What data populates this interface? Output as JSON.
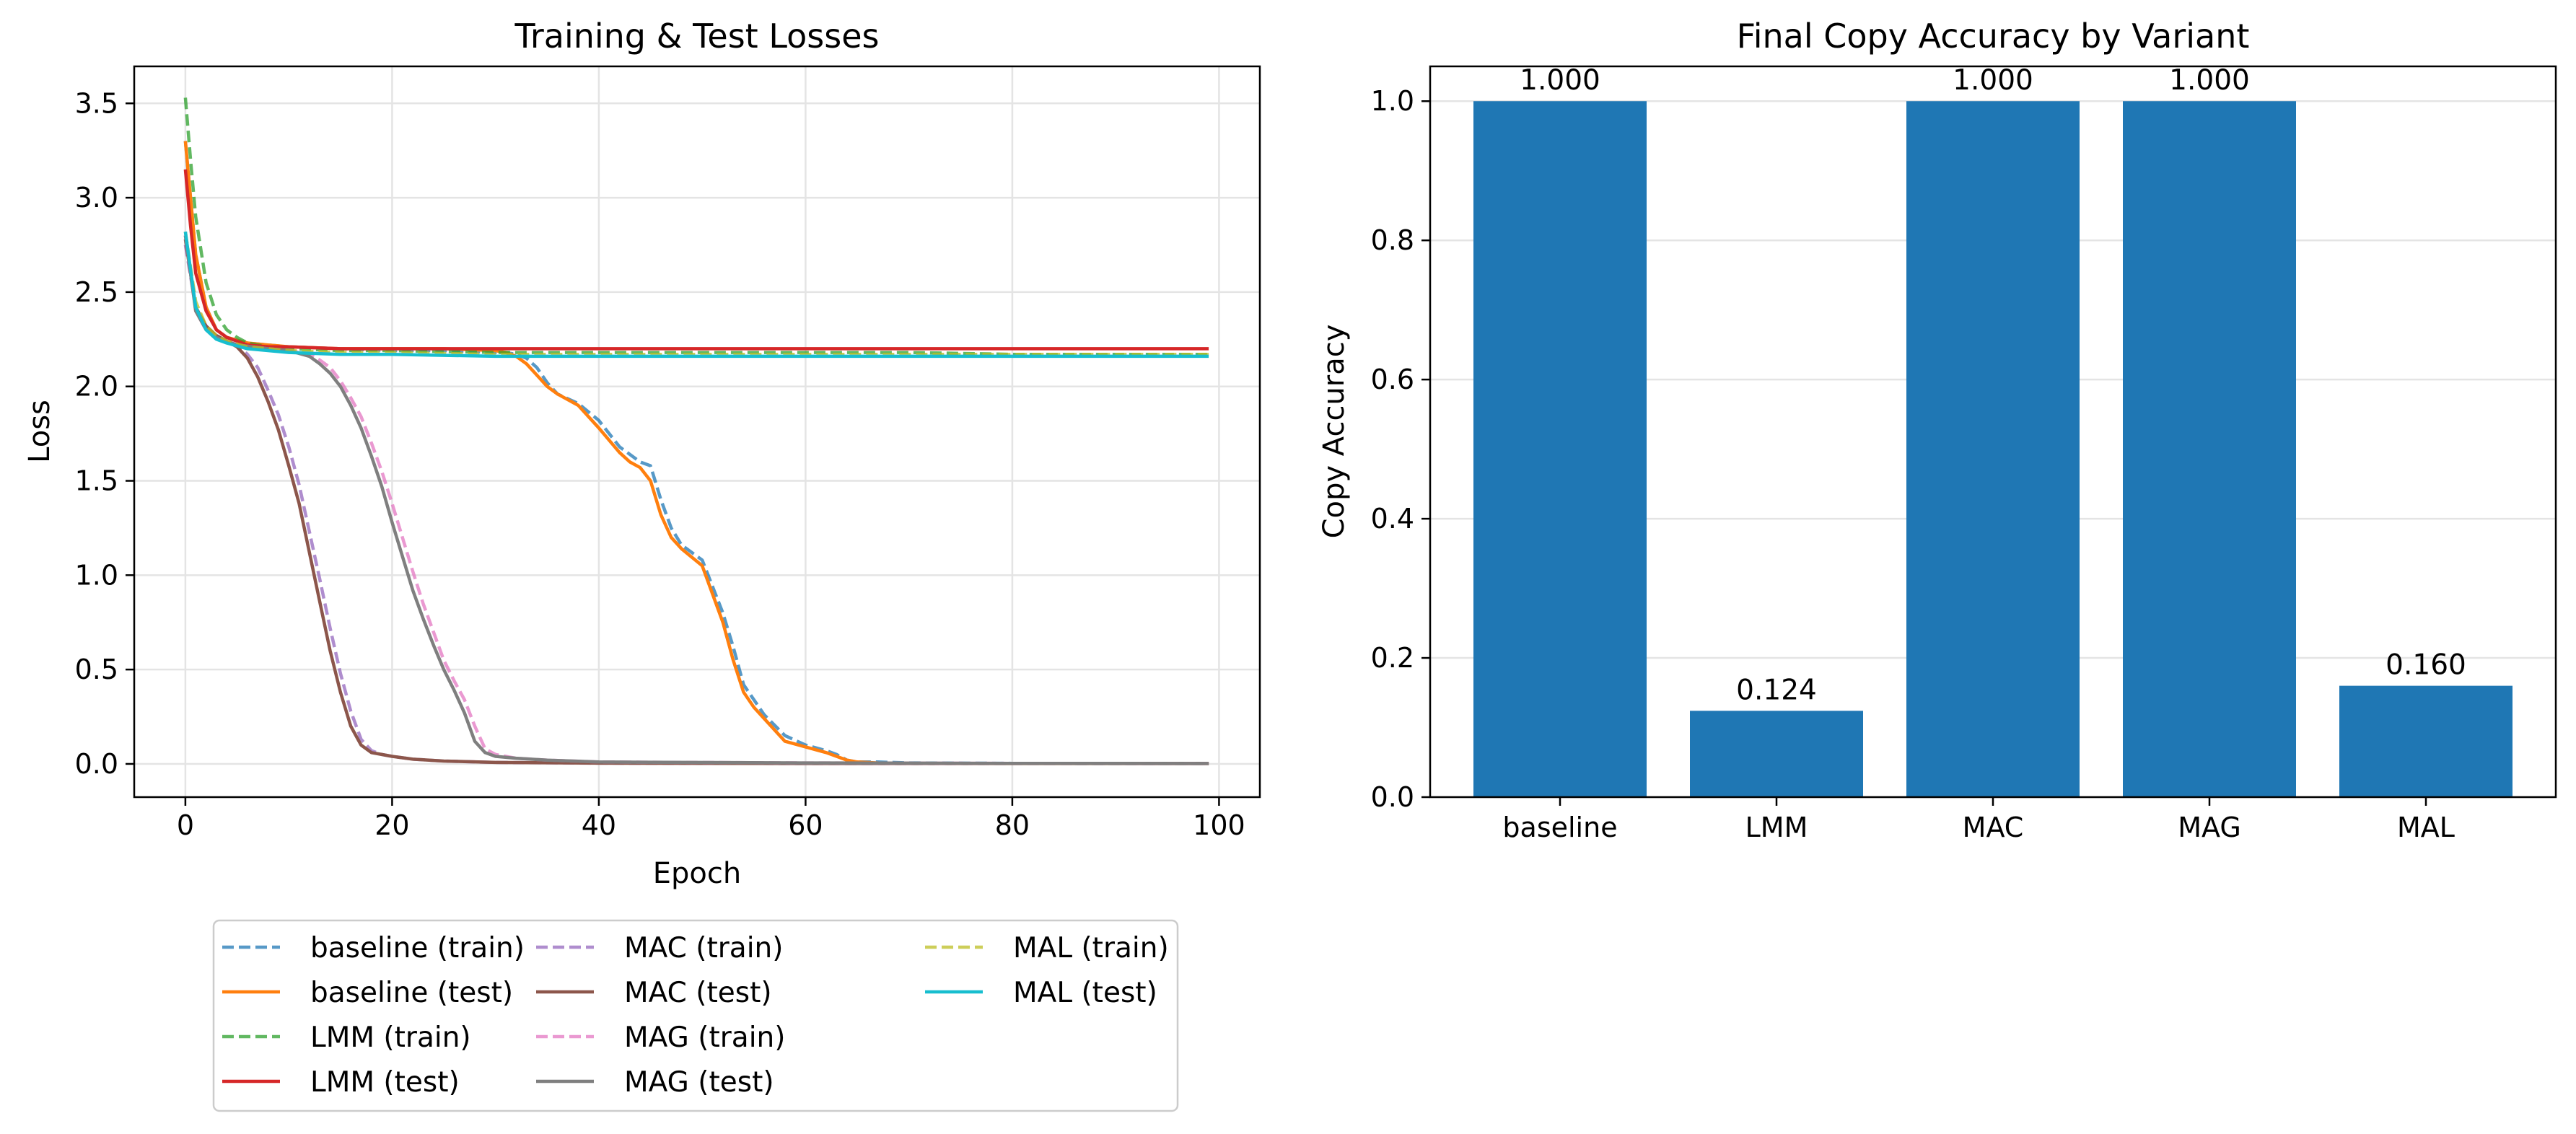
{
  "chart_data": [
    {
      "type": "line",
      "title": "Training & Test Losses",
      "xlabel": "Epoch",
      "ylabel": "Loss",
      "xlim": [
        -4.95,
        103.95
      ],
      "ylim": [
        -0.176,
        3.696
      ],
      "xticks": [
        0,
        20,
        40,
        60,
        80,
        100
      ],
      "yticks": [
        0.0,
        0.5,
        1.0,
        1.5,
        2.0,
        2.5,
        3.0,
        3.5
      ],
      "grid": true,
      "legend_position": "below",
      "legend_columns": 3,
      "series": [
        {
          "name": "baseline (train)",
          "style": "dashed",
          "color": "#1f77b4",
          "x": [
            0,
            1,
            2,
            3,
            4,
            6,
            8,
            10,
            15,
            20,
            25,
            30,
            31,
            32,
            33,
            34,
            35,
            36,
            38,
            40,
            42,
            44,
            45,
            46,
            47,
            48,
            50,
            52,
            53,
            54,
            55,
            56,
            58,
            60,
            62,
            63,
            64,
            65,
            67,
            70,
            80,
            90,
            99
          ],
          "y": [
            3.3,
            2.7,
            2.42,
            2.3,
            2.26,
            2.23,
            2.22,
            2.21,
            2.2,
            2.19,
            2.19,
            2.18,
            2.18,
            2.17,
            2.15,
            2.1,
            2.02,
            1.96,
            1.91,
            1.82,
            1.68,
            1.6,
            1.58,
            1.4,
            1.25,
            1.16,
            1.08,
            0.8,
            0.62,
            0.42,
            0.34,
            0.26,
            0.15,
            0.1,
            0.07,
            0.05,
            0.02,
            0.01,
            0.01,
            0.005,
            0.003,
            0.002,
            0.002
          ]
        },
        {
          "name": "baseline (test)",
          "style": "solid",
          "color": "#ff7f0e",
          "x": [
            0,
            1,
            2,
            3,
            4,
            6,
            8,
            10,
            15,
            20,
            25,
            30,
            31,
            32,
            33,
            34,
            35,
            36,
            38,
            40,
            42,
            43,
            44,
            45,
            46,
            47,
            48,
            50,
            52,
            53,
            54,
            55,
            56,
            58,
            60,
            62,
            63,
            64,
            65,
            67,
            70,
            80,
            90,
            99
          ],
          "y": [
            3.3,
            2.7,
            2.42,
            2.3,
            2.26,
            2.23,
            2.22,
            2.21,
            2.2,
            2.2,
            2.2,
            2.19,
            2.18,
            2.16,
            2.12,
            2.06,
            2.0,
            1.96,
            1.9,
            1.78,
            1.65,
            1.6,
            1.57,
            1.5,
            1.32,
            1.2,
            1.14,
            1.05,
            0.75,
            0.55,
            0.38,
            0.3,
            0.24,
            0.12,
            0.09,
            0.06,
            0.04,
            0.02,
            0.01,
            0.005,
            0.003,
            0.002,
            0.002,
            0.002
          ]
        },
        {
          "name": "LMM (train)",
          "style": "dashed",
          "color": "#2ca02c",
          "x": [
            0,
            0.5,
            1,
            2,
            3,
            4,
            5,
            6,
            8,
            10,
            15,
            20,
            30,
            40,
            50,
            60,
            70,
            80,
            90,
            99
          ],
          "y": [
            3.53,
            3.2,
            2.9,
            2.55,
            2.38,
            2.3,
            2.26,
            2.23,
            2.21,
            2.2,
            2.19,
            2.19,
            2.18,
            2.18,
            2.18,
            2.18,
            2.18,
            2.17,
            2.17,
            2.17
          ]
        },
        {
          "name": "LMM (test)",
          "style": "solid",
          "color": "#d62728",
          "x": [
            0,
            0.5,
            1,
            2,
            3,
            4,
            5,
            6,
            8,
            10,
            15,
            20,
            30,
            40,
            50,
            60,
            70,
            80,
            90,
            99
          ],
          "y": [
            3.15,
            2.85,
            2.6,
            2.4,
            2.3,
            2.26,
            2.24,
            2.22,
            2.21,
            2.21,
            2.2,
            2.2,
            2.2,
            2.2,
            2.2,
            2.2,
            2.2,
            2.2,
            2.2,
            2.2
          ]
        },
        {
          "name": "MAC (train)",
          "style": "dashed",
          "color": "#9467bd",
          "x": [
            0,
            1,
            2,
            3,
            4,
            5,
            6,
            7,
            8,
            9,
            10,
            11,
            12,
            13,
            14,
            15,
            16,
            17,
            18,
            19,
            20,
            22,
            25,
            30,
            40,
            60,
            80,
            99
          ],
          "y": [
            2.75,
            2.42,
            2.32,
            2.27,
            2.24,
            2.22,
            2.17,
            2.1,
            1.98,
            1.85,
            1.68,
            1.48,
            1.23,
            0.98,
            0.72,
            0.48,
            0.28,
            0.13,
            0.07,
            0.05,
            0.04,
            0.025,
            0.015,
            0.008,
            0.004,
            0.002,
            0.002,
            0.002
          ]
        },
        {
          "name": "MAC (test)",
          "style": "solid",
          "color": "#8c564b",
          "x": [
            0,
            1,
            2,
            3,
            4,
            5,
            6,
            7,
            8,
            9,
            10,
            11,
            12,
            13,
            14,
            15,
            16,
            17,
            18,
            19,
            20,
            22,
            25,
            30,
            40,
            60,
            80,
            99
          ],
          "y": [
            2.78,
            2.42,
            2.32,
            2.27,
            2.24,
            2.21,
            2.15,
            2.05,
            1.92,
            1.77,
            1.58,
            1.38,
            1.12,
            0.86,
            0.6,
            0.38,
            0.2,
            0.1,
            0.06,
            0.05,
            0.04,
            0.025,
            0.015,
            0.008,
            0.004,
            0.002,
            0.002,
            0.002
          ]
        },
        {
          "name": "MAG (train)",
          "style": "dashed",
          "color": "#e377c2",
          "x": [
            0,
            1,
            2,
            3,
            5,
            8,
            10,
            12,
            13,
            14,
            15,
            16,
            17,
            18,
            19,
            20,
            21,
            22,
            23,
            24,
            25,
            26,
            27,
            28,
            29,
            30,
            32,
            35,
            40,
            60,
            80,
            99
          ],
          "y": [
            2.8,
            2.4,
            2.3,
            2.26,
            2.22,
            2.2,
            2.19,
            2.17,
            2.14,
            2.1,
            2.03,
            1.94,
            1.84,
            1.7,
            1.55,
            1.38,
            1.2,
            1.02,
            0.85,
            0.7,
            0.55,
            0.44,
            0.34,
            0.2,
            0.08,
            0.05,
            0.03,
            0.02,
            0.01,
            0.005,
            0.003,
            0.002
          ]
        },
        {
          "name": "MAG (test)",
          "style": "solid",
          "color": "#7f7f7f",
          "x": [
            0,
            1,
            2,
            3,
            5,
            8,
            10,
            12,
            13,
            14,
            15,
            16,
            17,
            18,
            19,
            20,
            21,
            22,
            23,
            24,
            25,
            26,
            27,
            28,
            29,
            30,
            32,
            35,
            40,
            60,
            80,
            99
          ],
          "y": [
            2.8,
            2.4,
            2.3,
            2.26,
            2.22,
            2.2,
            2.19,
            2.16,
            2.12,
            2.07,
            2.0,
            1.9,
            1.78,
            1.63,
            1.47,
            1.28,
            1.1,
            0.92,
            0.77,
            0.63,
            0.5,
            0.39,
            0.27,
            0.12,
            0.06,
            0.04,
            0.03,
            0.02,
            0.01,
            0.005,
            0.003,
            0.002
          ]
        },
        {
          "name": "MAL (train)",
          "style": "dashed",
          "color": "#bcbd22",
          "x": [
            0,
            1,
            2,
            3,
            4,
            6,
            8,
            10,
            15,
            20,
            30,
            40,
            50,
            60,
            70,
            80,
            90,
            99
          ],
          "y": [
            2.82,
            2.45,
            2.32,
            2.27,
            2.24,
            2.21,
            2.2,
            2.19,
            2.18,
            2.18,
            2.17,
            2.17,
            2.17,
            2.17,
            2.17,
            2.17,
            2.17,
            2.17
          ]
        },
        {
          "name": "MAL (test)",
          "style": "solid",
          "color": "#17becf",
          "x": [
            0,
            1,
            2,
            3,
            4,
            6,
            8,
            10,
            15,
            20,
            30,
            40,
            50,
            60,
            70,
            80,
            90,
            99
          ],
          "y": [
            2.82,
            2.42,
            2.3,
            2.25,
            2.23,
            2.2,
            2.19,
            2.18,
            2.17,
            2.17,
            2.16,
            2.16,
            2.16,
            2.16,
            2.16,
            2.16,
            2.16,
            2.16
          ]
        }
      ]
    },
    {
      "type": "bar",
      "title": "Final Copy Accuracy by Variant",
      "xlabel": "",
      "ylabel": "Copy Accuracy",
      "ylim": [
        0,
        1.05
      ],
      "yticks": [
        0.0,
        0.2,
        0.4,
        0.6,
        0.8,
        1.0
      ],
      "grid": true,
      "color": "#1f77b4",
      "categories": [
        "baseline",
        "LMM",
        "MAC",
        "MAG",
        "MAL"
      ],
      "values": [
        1.0,
        0.124,
        1.0,
        1.0,
        0.16
      ],
      "value_labels": [
        "1.000",
        "0.124",
        "1.000",
        "1.000",
        "0.160"
      ]
    }
  ]
}
